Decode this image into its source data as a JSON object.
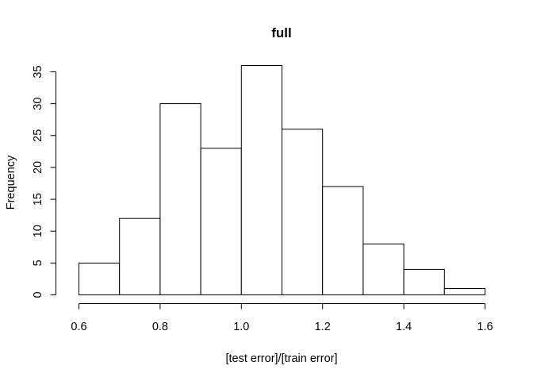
{
  "chart_data": {
    "type": "histogram",
    "title": "full",
    "xlabel": "[test error]/[train error]",
    "ylabel": "Frequency",
    "bins": [
      {
        "start": 0.6,
        "end": 0.7,
        "count": 5
      },
      {
        "start": 0.7,
        "end": 0.8,
        "count": 12
      },
      {
        "start": 0.8,
        "end": 0.9,
        "count": 30
      },
      {
        "start": 0.9,
        "end": 1.0,
        "count": 23
      },
      {
        "start": 1.0,
        "end": 1.1,
        "count": 36
      },
      {
        "start": 1.1,
        "end": 1.2,
        "count": 26
      },
      {
        "start": 1.2,
        "end": 1.3,
        "count": 17
      },
      {
        "start": 1.3,
        "end": 1.4,
        "count": 8
      },
      {
        "start": 1.4,
        "end": 1.5,
        "count": 4
      },
      {
        "start": 1.5,
        "end": 1.6,
        "count": 1
      }
    ],
    "xlim": [
      0.6,
      1.6
    ],
    "ylim": [
      0,
      35
    ],
    "x_ticks": [
      0.6,
      0.8,
      1.0,
      1.2,
      1.4,
      1.6
    ],
    "x_tick_labels": [
      "0.6",
      "0.8",
      "1.0",
      "1.2",
      "1.4",
      "1.6"
    ],
    "y_ticks": [
      0,
      5,
      10,
      15,
      20,
      25,
      30,
      35
    ],
    "y_tick_labels": [
      "0",
      "5",
      "10",
      "15",
      "20",
      "25",
      "30",
      "35"
    ],
    "grid": false
  }
}
